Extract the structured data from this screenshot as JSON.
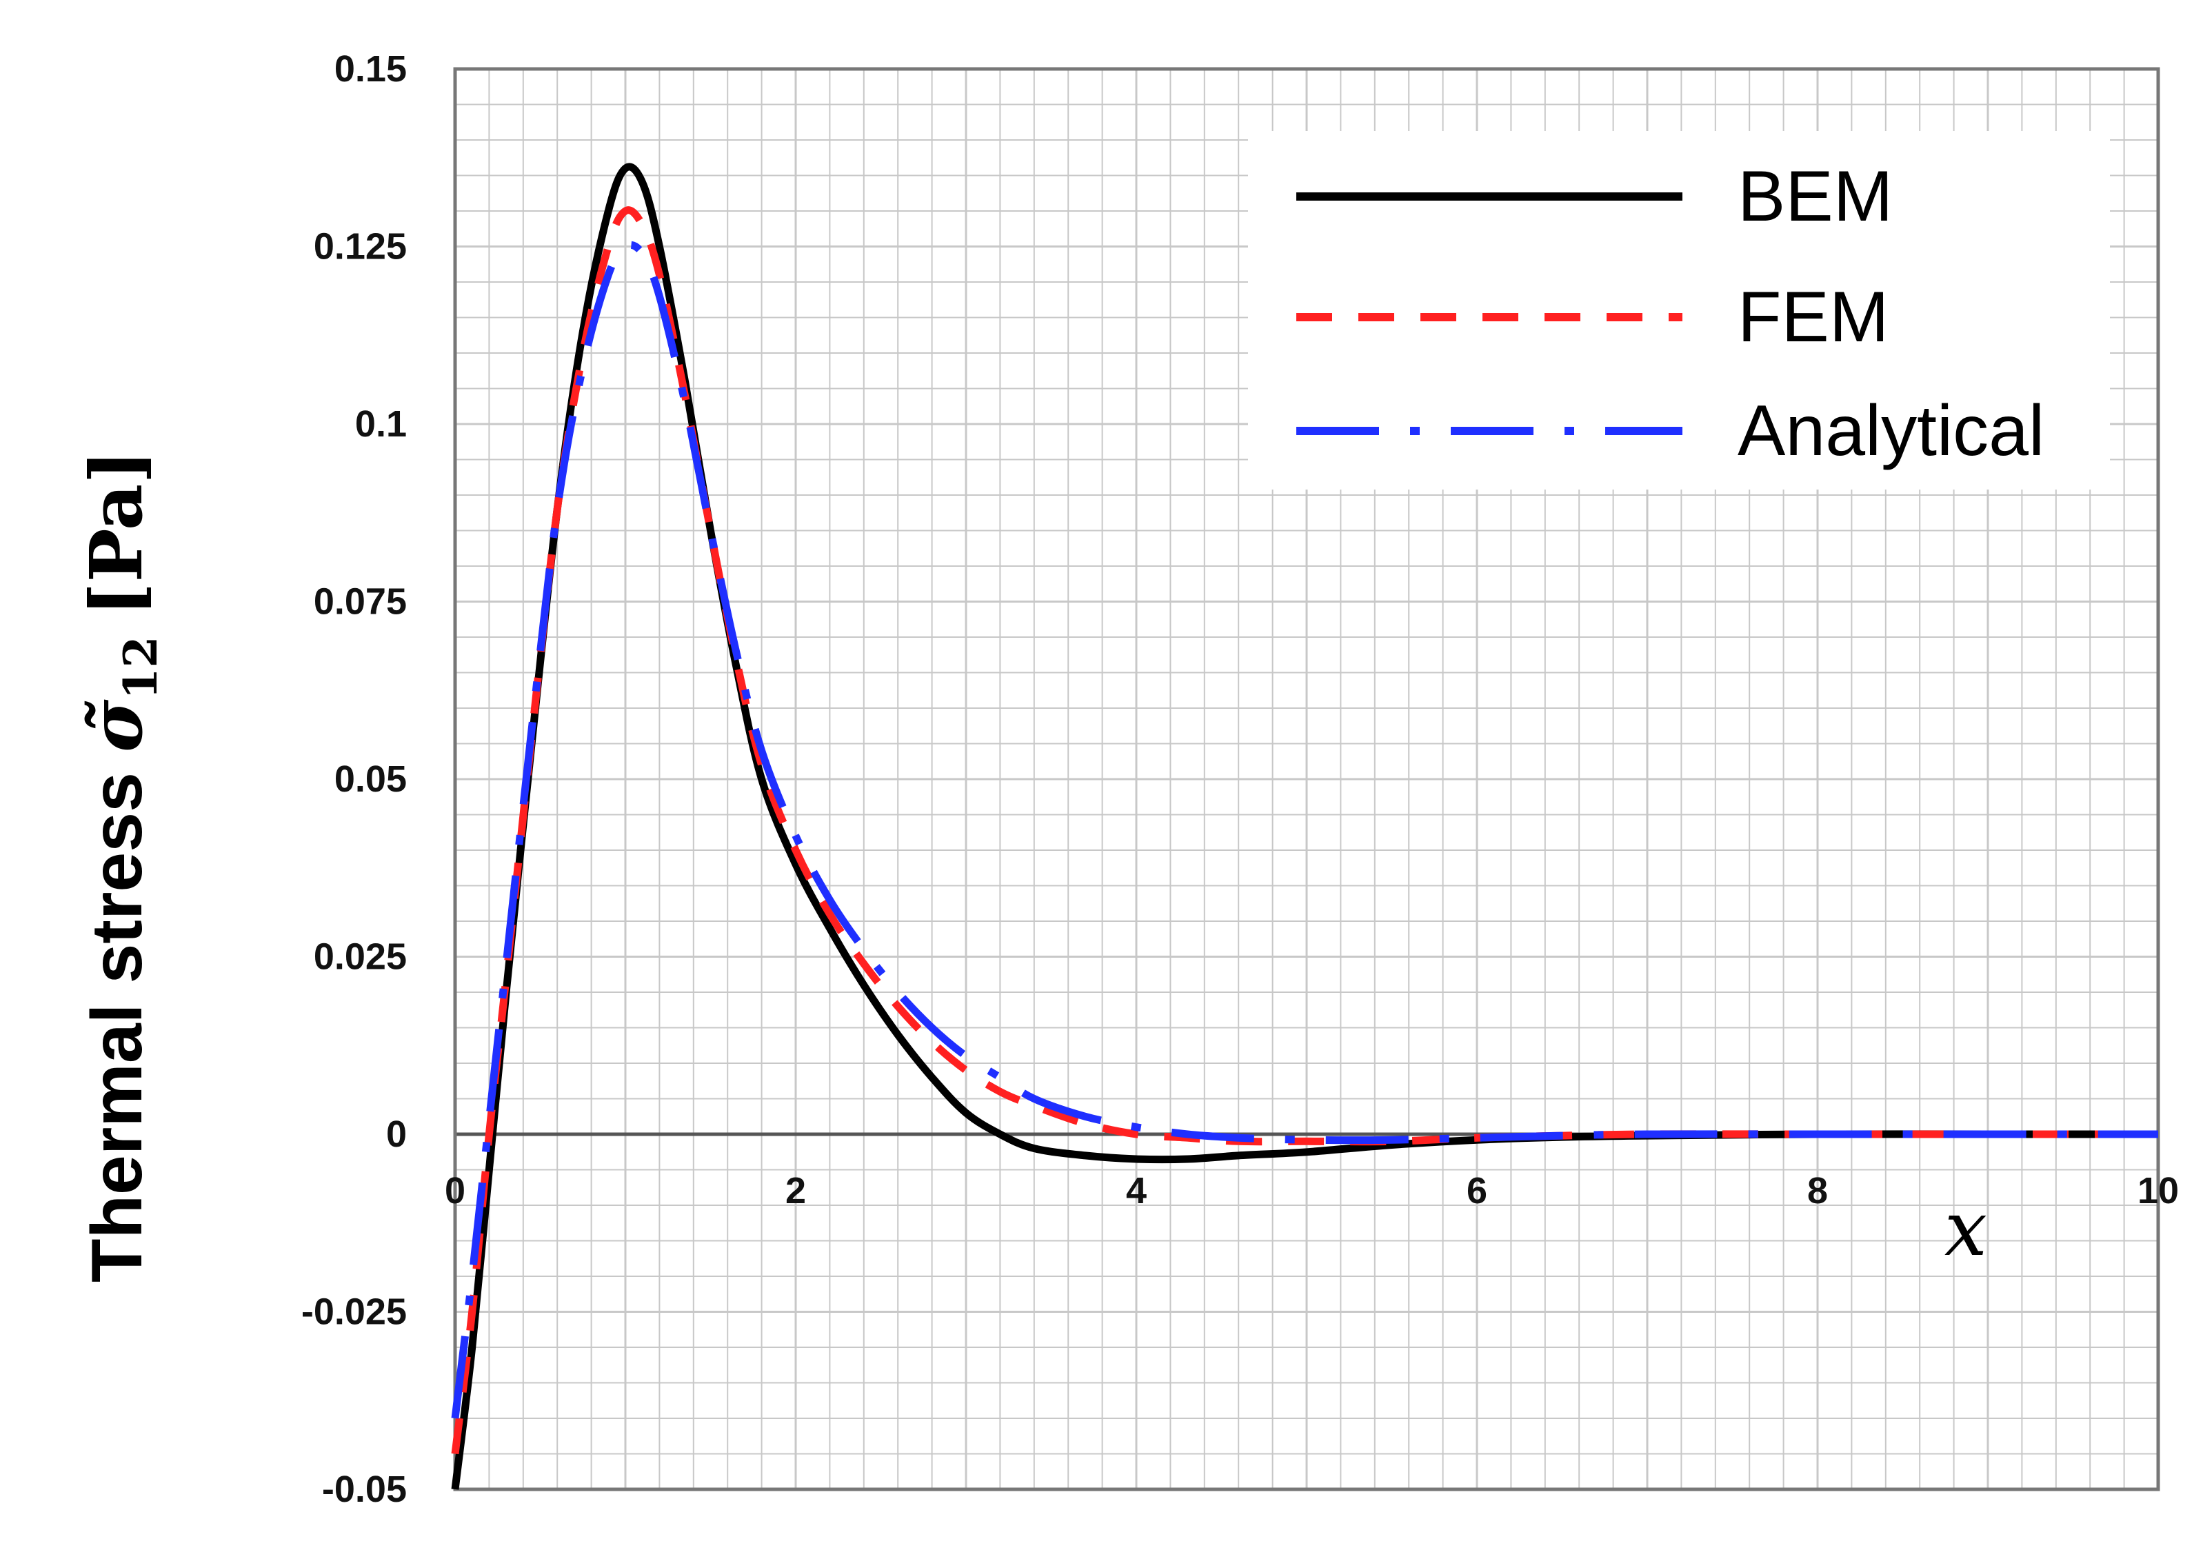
{
  "chart_data": {
    "type": "line",
    "xlabel": "x",
    "ylabel": {
      "text": "Thermal stress",
      "symbol": "σ̃",
      "subscript": "12",
      "unit": "[Pa]"
    },
    "xlim": [
      0,
      10
    ],
    "ylim": [
      -0.05,
      0.15
    ],
    "x_ticks": [
      "0",
      "2",
      "4",
      "6",
      "8",
      "10"
    ],
    "y_ticks": [
      "0.15",
      "0.125",
      "0.1",
      "0.075",
      "0.05",
      "0.025",
      "0",
      "-0.025",
      "-0.05"
    ],
    "grid": true,
    "legend_position": "top-right",
    "series": [
      {
        "name": "BEM",
        "color": "#000000",
        "style": "solid",
        "x": [
          0,
          0.1,
          0.2,
          0.3,
          0.45,
          0.6,
          0.75,
          0.9,
          1.0,
          1.1,
          1.2,
          1.35,
          1.5,
          1.65,
          1.8,
          2.0,
          2.2,
          2.4,
          2.6,
          2.8,
          3.0,
          3.2,
          3.4,
          3.7,
          4.0,
          4.3,
          4.6,
          5.0,
          5.5,
          6.0,
          6.5,
          7.0,
          8.0,
          9.0,
          10.0
        ],
        "y": [
          -0.05,
          -0.03,
          -0.005,
          0.02,
          0.055,
          0.088,
          0.113,
          0.13,
          0.136,
          0.134,
          0.125,
          0.106,
          0.085,
          0.066,
          0.05,
          0.038,
          0.029,
          0.021,
          0.014,
          0.008,
          0.003,
          0.0,
          -0.002,
          -0.003,
          -0.0035,
          -0.0035,
          -0.003,
          -0.0025,
          -0.0015,
          -0.0008,
          -0.0004,
          -0.0002,
          0.0,
          0.0,
          0.0
        ]
      },
      {
        "name": "FEM",
        "color": "#ff2020",
        "style": "dashed",
        "x": [
          0,
          0.1,
          0.2,
          0.3,
          0.45,
          0.6,
          0.75,
          0.9,
          1.0,
          1.1,
          1.2,
          1.35,
          1.5,
          1.65,
          1.8,
          2.0,
          2.2,
          2.4,
          2.6,
          2.8,
          3.0,
          3.2,
          3.4,
          3.7,
          4.0,
          4.3,
          4.6,
          5.0,
          5.5,
          6.0,
          6.5,
          7.0,
          8.0,
          9.0,
          10.0
        ],
        "y": [
          -0.045,
          -0.025,
          0.0,
          0.022,
          0.056,
          0.088,
          0.11,
          0.125,
          0.13,
          0.128,
          0.121,
          0.104,
          0.085,
          0.067,
          0.052,
          0.04,
          0.031,
          0.024,
          0.018,
          0.013,
          0.009,
          0.006,
          0.004,
          0.0015,
          0.0,
          -0.0005,
          -0.001,
          -0.001,
          -0.001,
          -0.0005,
          -0.0002,
          0.0,
          0.0,
          0.0,
          0.0
        ]
      },
      {
        "name": "Analytical",
        "color": "#1f2fff",
        "style": "long-dash-dot",
        "x": [
          0,
          0.1,
          0.2,
          0.3,
          0.45,
          0.6,
          0.75,
          0.9,
          1.0,
          1.1,
          1.2,
          1.35,
          1.5,
          1.65,
          1.8,
          2.0,
          2.2,
          2.4,
          2.6,
          2.8,
          3.0,
          3.2,
          3.4,
          3.7,
          4.0,
          4.3,
          4.6,
          5.0,
          5.5,
          6.0,
          6.5,
          7.0,
          8.0,
          9.0,
          10.0
        ],
        "y": [
          -0.04,
          -0.02,
          0.002,
          0.024,
          0.057,
          0.088,
          0.108,
          0.121,
          0.125,
          0.124,
          0.118,
          0.103,
          0.085,
          0.068,
          0.054,
          0.042,
          0.033,
          0.026,
          0.02,
          0.015,
          0.011,
          0.008,
          0.005,
          0.0025,
          0.001,
          0.0,
          -0.0005,
          -0.0008,
          -0.0008,
          -0.0005,
          -0.0002,
          0.0,
          0.0,
          0.0,
          0.0
        ]
      }
    ]
  },
  "colors": {
    "grid": "#c8c8c8",
    "axis": "#777777",
    "zero_line": "#555555",
    "legend_box": "#ffffff"
  }
}
